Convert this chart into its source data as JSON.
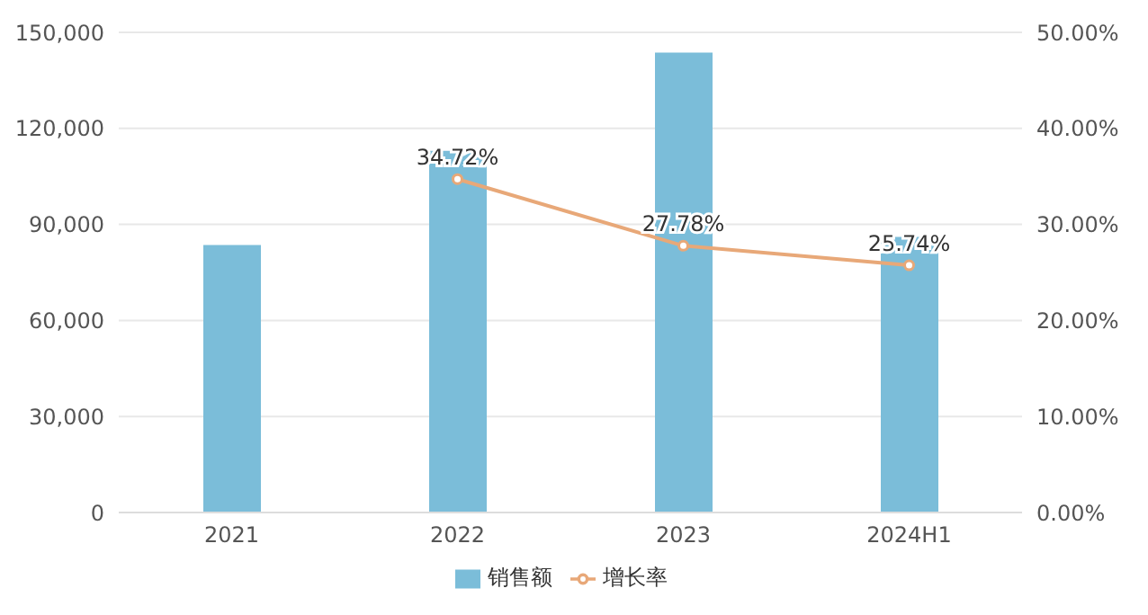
{
  "chart_data": {
    "type": "bar",
    "categories": [
      "2021",
      "2022",
      "2023",
      "2024H1"
    ],
    "series": [
      {
        "name": "销售额",
        "color": "#7bbdd9",
        "values": [
          83600,
          113000,
          143700,
          86100
        ]
      },
      {
        "name": "增长率",
        "type": "line",
        "axis": "y2",
        "color": "#e8a878",
        "marker": "circle",
        "values": [
          null,
          34.72,
          27.78,
          25.74
        ],
        "value_labels": [
          null,
          "34.72%",
          "27.78%",
          "25.74%"
        ]
      }
    ],
    "ylim": [
      0,
      150000
    ],
    "yticks": [
      {
        "value": 0,
        "label": "0"
      },
      {
        "value": 30000,
        "label": "30,000"
      },
      {
        "value": 60000,
        "label": "60,000"
      },
      {
        "value": 90000,
        "label": "90,000"
      },
      {
        "value": 120000,
        "label": "120,000"
      },
      {
        "value": 150000,
        "label": "150,000"
      }
    ],
    "y2lim": [
      0,
      50
    ],
    "y2ticks": [
      {
        "value": 0,
        "label": "0.00%"
      },
      {
        "value": 10,
        "label": "10.00%"
      },
      {
        "value": 20,
        "label": "20.00%"
      },
      {
        "value": 30,
        "label": "30.00%"
      },
      {
        "value": 40,
        "label": "40.00%"
      },
      {
        "value": 50,
        "label": "50.00%"
      }
    ],
    "grid": "y",
    "legend": "bottom"
  }
}
